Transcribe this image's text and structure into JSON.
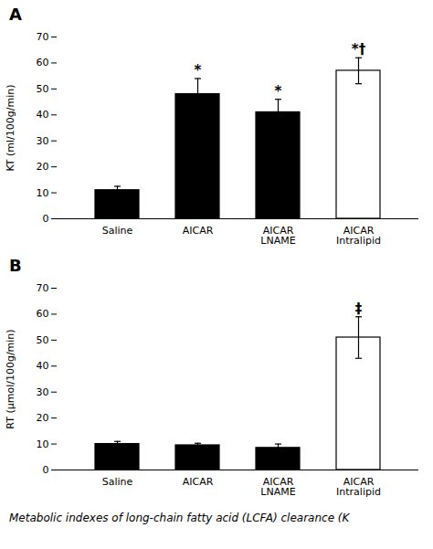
{
  "chart_data": [
    {
      "type": "bar",
      "title": "A",
      "ylabel": "KT (ml/100g/min)",
      "categories": [
        "Saline",
        "AICAR",
        "AICAR\nLNAME",
        "AICAR\nIntralipid"
      ],
      "values": [
        11,
        48,
        41,
        57
      ],
      "errors": [
        1.5,
        6,
        5,
        5
      ],
      "colors": [
        "#000000",
        "#000000",
        "#000000",
        "#ffffff"
      ],
      "annotations": [
        null,
        "*",
        "*",
        "*†"
      ],
      "ylim": [
        0,
        70
      ],
      "yticks": [
        0,
        10,
        20,
        30,
        40,
        50,
        60,
        70
      ],
      "grid": false
    },
    {
      "type": "bar",
      "title": "B",
      "ylabel": "RT (μmol/100g/min)",
      "categories": [
        "Saline",
        "AICAR",
        "AICAR\nLNAME",
        "AICAR\nIntralipid"
      ],
      "values": [
        10,
        9.5,
        8.5,
        51
      ],
      "errors": [
        1.0,
        0.8,
        1.5,
        8
      ],
      "colors": [
        "#000000",
        "#000000",
        "#000000",
        "#ffffff"
      ],
      "annotations": [
        null,
        null,
        null,
        "‡"
      ],
      "ylim": [
        0,
        70
      ],
      "yticks": [
        0,
        10,
        20,
        30,
        40,
        50,
        60,
        70
      ],
      "grid": false,
      "caption": "Metabolic indexes of long-chain fatty acid (LCFA) clearance (K"
    }
  ]
}
